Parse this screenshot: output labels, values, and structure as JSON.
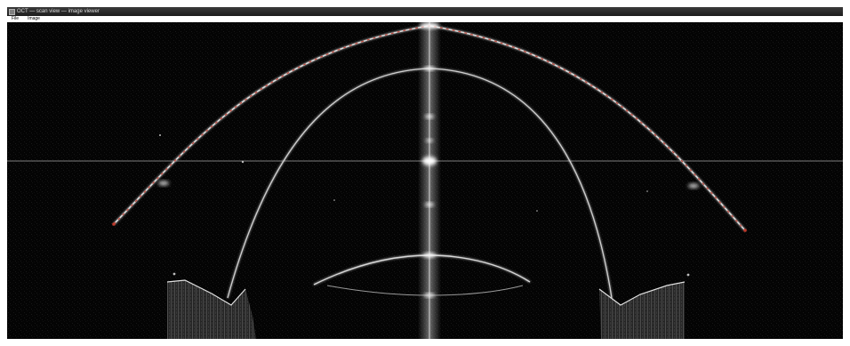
{
  "window": {
    "title": "OCT — scan view — image viewer"
  },
  "menu": {
    "items": [
      "File",
      "Image"
    ]
  },
  "scan_view": {
    "overlay_color": "#c0392b",
    "signal_color": "#e8e8e8",
    "background_color": "#030303"
  }
}
